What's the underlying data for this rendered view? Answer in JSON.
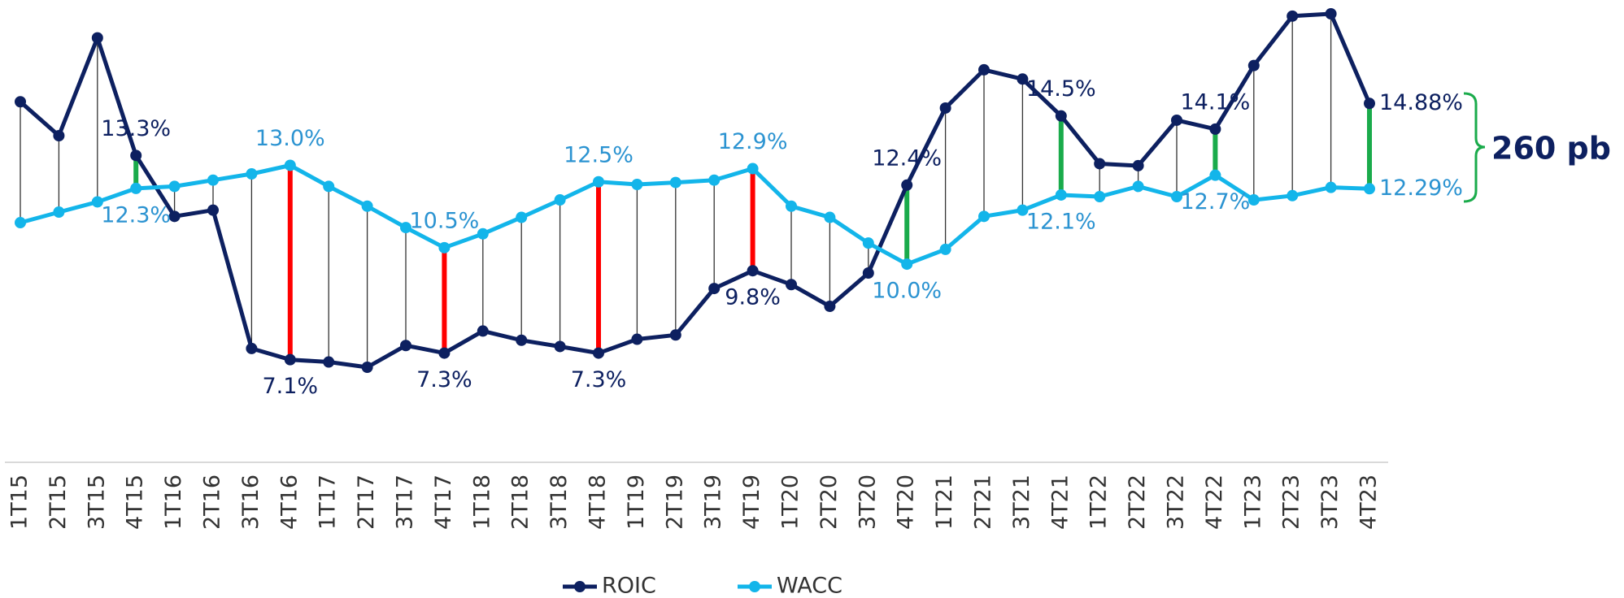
{
  "chart_data": {
    "type": "line",
    "categories": [
      "1T15",
      "2T15",
      "3T15",
      "4T15",
      "1T16",
      "2T16",
      "3T16",
      "4T16",
      "1T17",
      "2T17",
      "3T17",
      "4T17",
      "1T18",
      "2T18",
      "3T18",
      "4T18",
      "1T19",
      "2T19",
      "3T19",
      "4T19",
      "1T20",
      "2T20",
      "3T20",
      "4T20",
      "1T21",
      "2T21",
      "3T21",
      "4T21",
      "1T22",
      "2T22",
      "3T22",
      "4T22",
      "1T23",
      "2T23",
      "3T23",
      "4T23"
    ],
    "series": [
      {
        "name": "ROIC",
        "color": "#0d2060",
        "values": [
          14.93,
          13.9,
          16.87,
          13.3,
          11.45,
          11.64,
          7.44,
          7.1,
          7.03,
          6.87,
          7.53,
          7.3,
          7.97,
          7.69,
          7.5,
          7.3,
          7.72,
          7.85,
          9.26,
          9.8,
          9.38,
          8.72,
          9.73,
          12.4,
          14.74,
          15.9,
          15.62,
          14.5,
          13.05,
          12.99,
          14.37,
          14.1,
          16.03,
          17.53,
          17.6,
          14.88
        ],
        "value_labels": [
          null,
          null,
          null,
          "13.3%",
          null,
          null,
          null,
          "7.1%",
          null,
          null,
          null,
          "7.3%",
          null,
          null,
          null,
          "7.3%",
          null,
          null,
          null,
          "9.8%",
          null,
          null,
          null,
          "12.4%",
          null,
          null,
          null,
          "14.5%",
          null,
          null,
          null,
          "14.1%",
          null,
          null,
          null,
          "14.88%"
        ]
      },
      {
        "name": "WACC",
        "color": "#13b5ea",
        "values": [
          11.26,
          11.58,
          11.89,
          12.3,
          12.36,
          12.55,
          12.74,
          13.0,
          12.36,
          11.76,
          11.11,
          10.5,
          10.92,
          11.42,
          11.95,
          12.5,
          12.42,
          12.48,
          12.55,
          12.9,
          11.76,
          11.42,
          10.64,
          10.0,
          10.45,
          11.45,
          11.64,
          12.1,
          12.05,
          12.36,
          12.05,
          12.7,
          11.95,
          12.08,
          12.33,
          12.29
        ],
        "value_labels": [
          null,
          null,
          null,
          "12.3%",
          null,
          null,
          null,
          "13.0%",
          null,
          null,
          null,
          "10.5%",
          null,
          null,
          null,
          "12.5%",
          null,
          null,
          null,
          "12.9%",
          null,
          null,
          null,
          "10.0%",
          null,
          null,
          null,
          "12.1%",
          null,
          null,
          null,
          "12.7%",
          null,
          null,
          null,
          "12.29%"
        ]
      }
    ],
    "gap_colors": {
      "positive": "#1aab4b",
      "negative": "#ff0000"
    },
    "annotation": "260 pb",
    "legend": "bottom"
  }
}
